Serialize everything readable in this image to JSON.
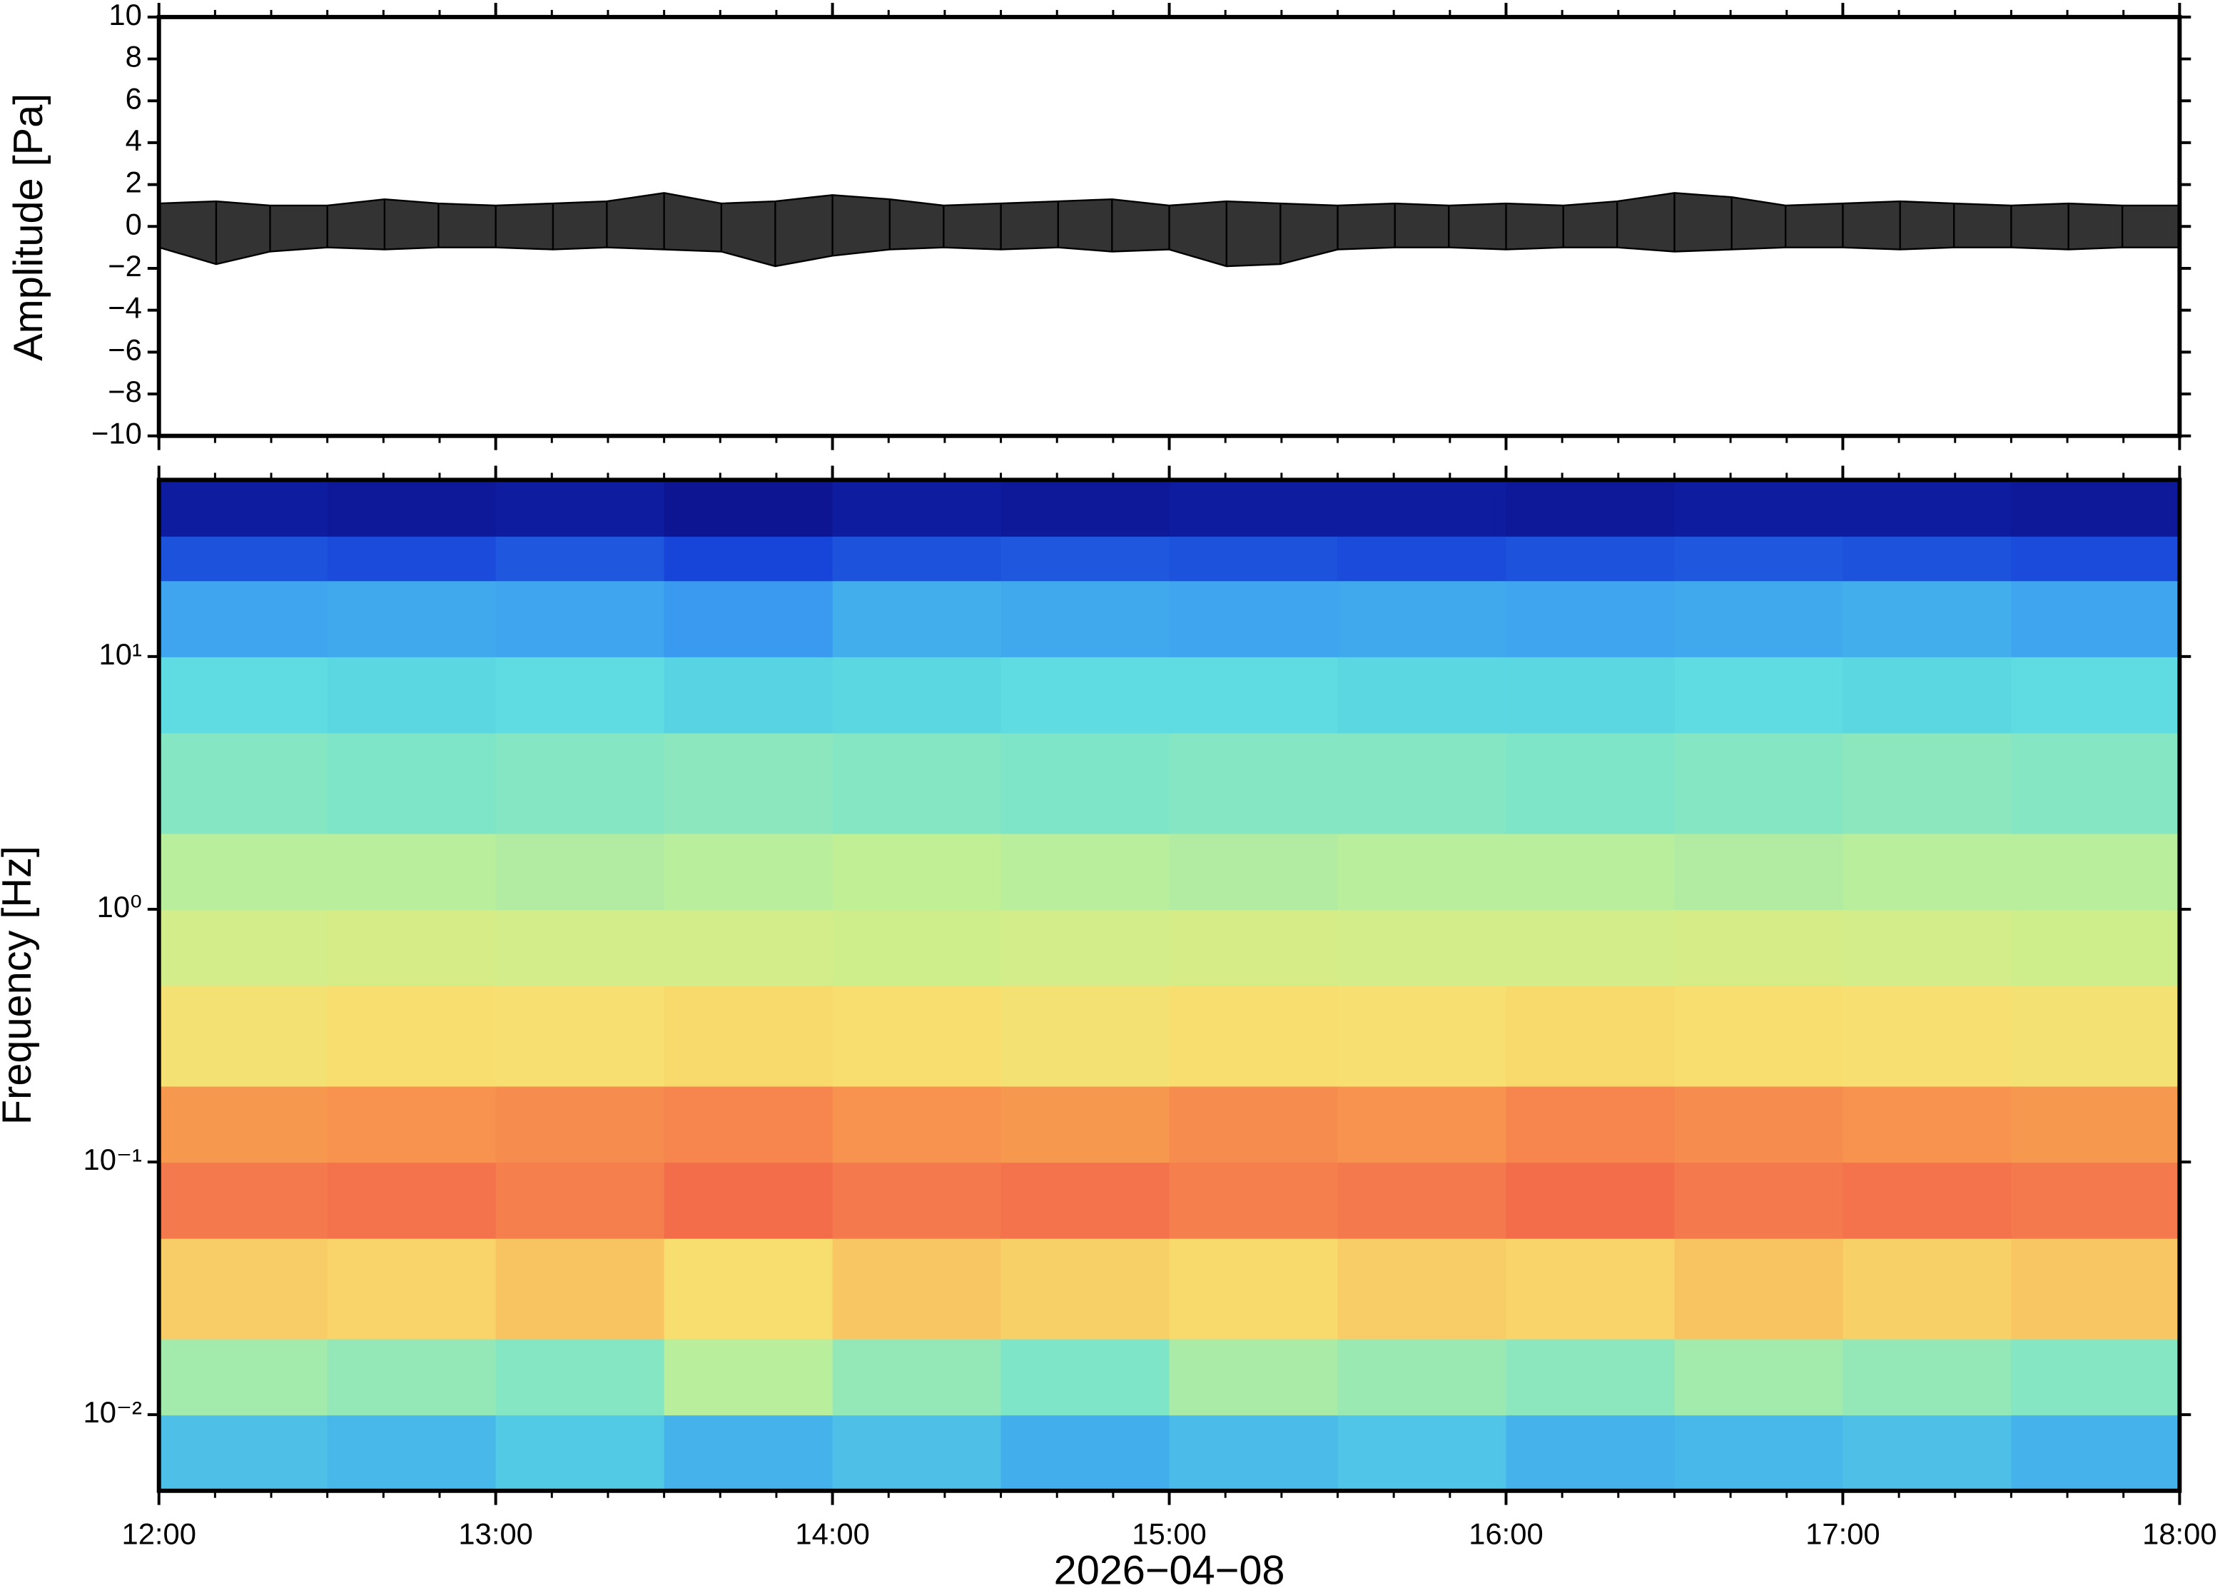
{
  "chart_data": [
    {
      "type": "envelope",
      "ylabel": "Amplitude [Pa]",
      "x": [
        12,
        12.17,
        12.33,
        12.5,
        12.67,
        12.83,
        13,
        13.17,
        13.33,
        13.5,
        13.67,
        13.83,
        14,
        14.17,
        14.33,
        14.5,
        14.67,
        14.83,
        15,
        15.17,
        15.33,
        15.5,
        15.67,
        15.83,
        16,
        16.17,
        16.33,
        16.5,
        16.67,
        16.83,
        17,
        17.17,
        17.33,
        17.5,
        17.67,
        17.83,
        18
      ],
      "upper": [
        1.1,
        1.2,
        1.0,
        1.0,
        1.3,
        1.1,
        1.0,
        1.1,
        1.2,
        1.6,
        1.1,
        1.2,
        1.5,
        1.3,
        1.0,
        1.1,
        1.2,
        1.3,
        1.0,
        1.2,
        1.1,
        1.0,
        1.1,
        1.0,
        1.1,
        1.0,
        1.2,
        1.6,
        1.4,
        1.0,
        1.1,
        1.2,
        1.1,
        1.0,
        1.1,
        1.0,
        1.0
      ],
      "lower": [
        -1.0,
        -1.8,
        -1.2,
        -1.0,
        -1.1,
        -1.0,
        -1.0,
        -1.1,
        -1.0,
        -1.1,
        -1.2,
        -1.9,
        -1.4,
        -1.1,
        -1.0,
        -1.1,
        -1.0,
        -1.2,
        -1.1,
        -1.9,
        -1.8,
        -1.1,
        -1.0,
        -1.0,
        -1.1,
        -1.0,
        -1.0,
        -1.2,
        -1.1,
        -1.0,
        -1.0,
        -1.1,
        -1.0,
        -1.0,
        -1.1,
        -1.0,
        -1.0
      ],
      "color": "#000000",
      "xlim": [
        12,
        18
      ],
      "xticks": [
        12,
        13,
        14,
        15,
        16,
        17,
        18
      ],
      "ylim": [
        -10,
        10
      ],
      "yticks": [
        {
          "value": -10,
          "label": "−10"
        },
        {
          "value": -8,
          "label": "−8"
        },
        {
          "value": -6,
          "label": "−6"
        },
        {
          "value": -4,
          "label": "−4"
        },
        {
          "value": -2,
          "label": "−2"
        },
        0,
        2,
        4,
        6,
        8,
        10
      ]
    },
    {
      "type": "heatmap",
      "ylabel": "Frequency [Hz]",
      "xlabel": "2026−04−08",
      "log_y": true,
      "x_edges": [
        12,
        12.5,
        13,
        13.5,
        14,
        14.5,
        15,
        15.5,
        16,
        16.5,
        17,
        17.5,
        18
      ],
      "y_edges": [
        0.005,
        0.01,
        0.02,
        0.05,
        0.1,
        0.2,
        0.5,
        1,
        2,
        5,
        10,
        20,
        30,
        50
      ],
      "z": [
        [
          0.36,
          0.34,
          0.38,
          0.33,
          0.36,
          0.32,
          0.35,
          0.37,
          0.33,
          0.34,
          0.36,
          0.33
        ],
        [
          0.52,
          0.5,
          0.48,
          0.55,
          0.5,
          0.47,
          0.53,
          0.51,
          0.49,
          0.52,
          0.5,
          0.48
        ],
        [
          0.76,
          0.74,
          0.78,
          0.72,
          0.77,
          0.75,
          0.73,
          0.76,
          0.74,
          0.78,
          0.75,
          0.77
        ],
        [
          0.92,
          0.93,
          0.91,
          0.94,
          0.92,
          0.93,
          0.91,
          0.92,
          0.94,
          0.92,
          0.93,
          0.92
        ],
        [
          0.87,
          0.88,
          0.89,
          0.9,
          0.88,
          0.87,
          0.89,
          0.88,
          0.9,
          0.89,
          0.88,
          0.87
        ],
        [
          0.7,
          0.72,
          0.71,
          0.73,
          0.72,
          0.7,
          0.72,
          0.71,
          0.73,
          0.72,
          0.71,
          0.7
        ],
        [
          0.6,
          0.61,
          0.6,
          0.6,
          0.59,
          0.6,
          0.61,
          0.6,
          0.6,
          0.61,
          0.6,
          0.59
        ],
        [
          0.55,
          0.55,
          0.54,
          0.55,
          0.56,
          0.55,
          0.54,
          0.55,
          0.55,
          0.54,
          0.55,
          0.55
        ],
        [
          0.48,
          0.47,
          0.48,
          0.49,
          0.48,
          0.47,
          0.48,
          0.48,
          0.47,
          0.48,
          0.49,
          0.48
        ],
        [
          0.42,
          0.41,
          0.42,
          0.4,
          0.41,
          0.42,
          0.42,
          0.41,
          0.41,
          0.42,
          0.41,
          0.42
        ],
        [
          0.3,
          0.31,
          0.3,
          0.28,
          0.32,
          0.31,
          0.3,
          0.31,
          0.3,
          0.31,
          0.32,
          0.3
        ],
        [
          0.17,
          0.16,
          0.18,
          0.15,
          0.17,
          0.18,
          0.17,
          0.16,
          0.17,
          0.18,
          0.17,
          0.16
        ],
        [
          0.05,
          0.04,
          0.05,
          0.03,
          0.05,
          0.04,
          0.05,
          0.05,
          0.04,
          0.05,
          0.05,
          0.04
        ]
      ],
      "colorscale": [
        "#0a0a80",
        "#1640d8",
        "#3a9ef0",
        "#60e0e0",
        "#c8f090",
        "#f8e070",
        "#f8a050",
        "#f04848"
      ],
      "xlim": [
        12,
        18
      ],
      "xticks": [
        {
          "value": 12,
          "label": "12:00"
        },
        {
          "value": 13,
          "label": "13:00"
        },
        {
          "value": 14,
          "label": "14:00"
        },
        {
          "value": 15,
          "label": "15:00"
        },
        {
          "value": 16,
          "label": "16:00"
        },
        {
          "value": 17,
          "label": "17:00"
        },
        {
          "value": 18,
          "label": "18:00"
        }
      ],
      "ylim": [
        0.005,
        50
      ],
      "yticks": [
        {
          "value": 0.01,
          "label": "10⁻²"
        },
        {
          "value": 0.1,
          "label": "10⁻¹"
        },
        {
          "value": 1,
          "label": "10⁰"
        },
        {
          "value": 10,
          "label": "10¹"
        }
      ]
    }
  ]
}
